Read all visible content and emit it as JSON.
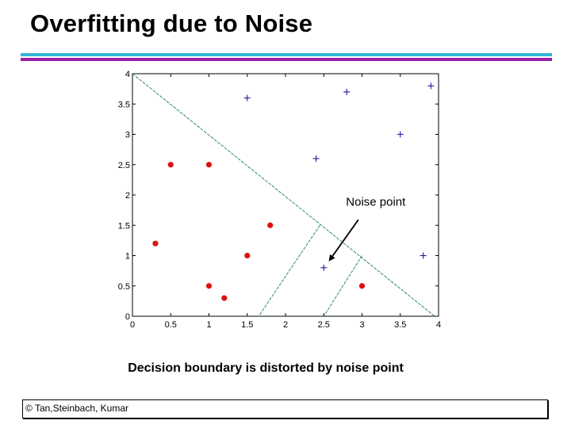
{
  "slide": {
    "title": "Overfitting due to Noise",
    "caption": "Decision boundary is distorted by noise point",
    "footer": "© Tan,Steinbach, Kumar"
  },
  "colors": {
    "accent_cyan": "#33b5d6",
    "accent_purple": "#9b1fa8",
    "circle_class": "#dd1111",
    "plus_class": "#1a1aa0",
    "boundary": "#2e8b6e"
  },
  "chart_data": {
    "type": "scatter",
    "xlim": [
      0,
      4
    ],
    "ylim": [
      0,
      4
    ],
    "x_ticks": [
      "0",
      "0.5",
      "1",
      "1.5",
      "2",
      "2.5",
      "3",
      "3.5",
      "4"
    ],
    "y_ticks": [
      "0",
      "0.5",
      "1",
      "1.5",
      "2",
      "2.5",
      "3",
      "3.5",
      "4"
    ],
    "grid": false,
    "series": [
      {
        "marker": "circle",
        "points": [
          [
            0.5,
            2.5
          ],
          [
            1.0,
            2.5
          ],
          [
            0.3,
            1.2
          ],
          [
            1.8,
            1.5
          ],
          [
            1.5,
            1.0
          ],
          [
            1.0,
            0.5
          ],
          [
            1.2,
            0.3
          ],
          [
            3.0,
            0.5
          ]
        ]
      },
      {
        "marker": "plus",
        "points": [
          [
            1.5,
            3.6
          ],
          [
            2.8,
            3.7
          ],
          [
            3.9,
            3.8
          ],
          [
            3.5,
            3.0
          ],
          [
            2.4,
            2.6
          ],
          [
            3.8,
            1.0
          ],
          [
            2.5,
            0.8
          ]
        ]
      }
    ],
    "boundary_lines": [
      [
        [
          0.0,
          4.0
        ],
        [
          3.95,
          0.0
        ]
      ],
      [
        [
          2.45,
          1.5
        ],
        [
          1.65,
          0.0
        ]
      ],
      [
        [
          3.0,
          1.0
        ],
        [
          2.5,
          0.0
        ]
      ]
    ],
    "annotation": {
      "text": "Noise point",
      "target": [
        2.5,
        0.8
      ],
      "text_at": [
        3.2,
        1.8
      ]
    }
  }
}
